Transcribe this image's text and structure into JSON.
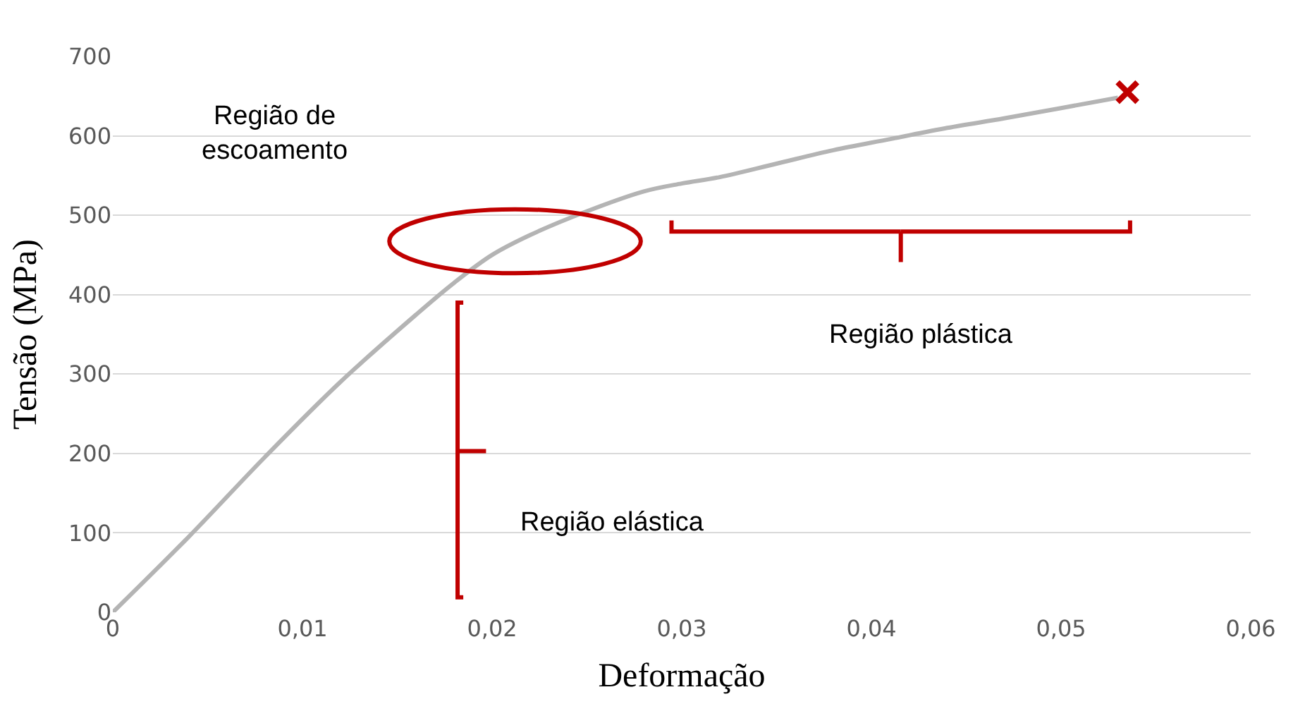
{
  "chart_data": {
    "type": "line",
    "xlabel": "Deformação",
    "ylabel": "Tensão (MPa)",
    "x": [
      0,
      0.004,
      0.008,
      0.012,
      0.016,
      0.018,
      0.02,
      0.022,
      0.025,
      0.028,
      0.03,
      0.032,
      0.035,
      0.038,
      0.041,
      0.044,
      0.047,
      0.05,
      0.053
    ],
    "series": [
      {
        "color": "#b4b4b4",
        "values": [
          0,
          95,
          195,
          290,
          375,
          415,
          450,
          475,
          505,
          530,
          540,
          548,
          565,
          582,
          596,
          610,
          622,
          635,
          648
        ]
      },
      {
        "type": "scatter",
        "marker": "cross",
        "color": "#c00000",
        "x": [
          0.0535
        ],
        "values": [
          655
        ]
      }
    ],
    "xlim": [
      0,
      0.06
    ],
    "xticks": [
      0,
      {
        "value": 0.01,
        "label": "0,01"
      },
      {
        "value": 0.02,
        "label": "0,02"
      },
      {
        "value": 0.03,
        "label": "0,03"
      },
      {
        "value": 0.04,
        "label": "0,04"
      },
      {
        "value": 0.05,
        "label": "0,05"
      },
      {
        "value": 0.06,
        "label": "0,06"
      }
    ],
    "ylim": [
      0,
      700
    ],
    "yticks": [
      0,
      100,
      200,
      300,
      400,
      500,
      600,
      700
    ],
    "grid": "y",
    "annotations": [
      "Região de escoamento",
      "Região plástica",
      "Região elástica"
    ]
  }
}
